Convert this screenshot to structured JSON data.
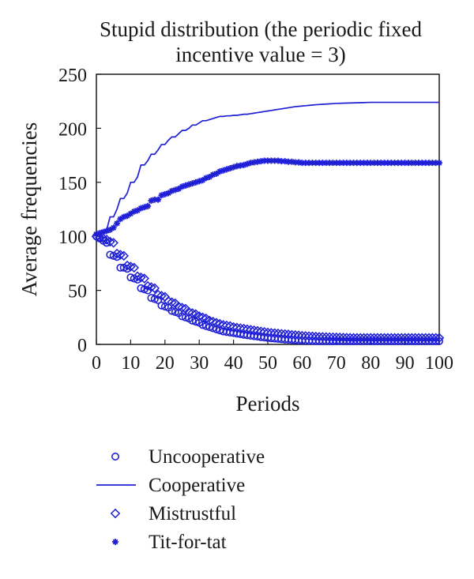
{
  "chart_data": {
    "type": "scatter",
    "title_lines": [
      "Stupid distribution (the periodic fixed",
      "incentive value = 3)"
    ],
    "xlabel": "Periods",
    "ylabel": "Average frequencies",
    "xlim": [
      0,
      100
    ],
    "ylim": [
      0,
      250
    ],
    "xticks": [
      0,
      10,
      20,
      30,
      40,
      50,
      60,
      70,
      80,
      90,
      100
    ],
    "yticks": [
      0,
      50,
      100,
      150,
      200,
      250
    ],
    "grid": false,
    "legend_position": "bottom",
    "line_color": "#1f1fd6",
    "x": [
      0,
      1,
      2,
      3,
      4,
      5,
      6,
      7,
      8,
      9,
      10,
      11,
      12,
      13,
      14,
      15,
      16,
      17,
      18,
      19,
      20,
      21,
      22,
      23,
      24,
      25,
      26,
      27,
      28,
      29,
      30,
      31,
      32,
      33,
      34,
      35,
      36,
      37,
      38,
      39,
      40,
      41,
      42,
      43,
      44,
      45,
      46,
      47,
      48,
      49,
      50,
      51,
      52,
      53,
      54,
      55,
      56,
      57,
      58,
      59,
      60,
      61,
      62,
      63,
      64,
      65,
      66,
      67,
      68,
      69,
      70,
      71,
      72,
      73,
      74,
      75,
      76,
      77,
      78,
      79,
      80,
      81,
      82,
      83,
      84,
      85,
      86,
      87,
      88,
      89,
      90,
      91,
      92,
      93,
      94,
      95,
      96,
      97,
      98,
      99,
      100
    ],
    "series": [
      {
        "name": "Uncooperative",
        "marker": "circle",
        "values": [
          100,
          98,
          96,
          94,
          83,
          82,
          81,
          71,
          71,
          70,
          62,
          61,
          60,
          52,
          51,
          50,
          43,
          42,
          41,
          36,
          35,
          34,
          31,
          30,
          29,
          26,
          25,
          24,
          22,
          21,
          20,
          18,
          17,
          16,
          15,
          14,
          13,
          12,
          11.5,
          11,
          10.5,
          10,
          9.5,
          9,
          8.5,
          8,
          7.6,
          7.2,
          6.8,
          6.4,
          6,
          5.7,
          5.4,
          5.1,
          4.8,
          4.5,
          4.3,
          4.1,
          3.9,
          3.7,
          3.5,
          3.4,
          3.3,
          3.2,
          3.1,
          3,
          3,
          3,
          3,
          3,
          3,
          3,
          3,
          3,
          3,
          3,
          3,
          3,
          3,
          3,
          3,
          3,
          3,
          3,
          3,
          3,
          3,
          3,
          3,
          3,
          3,
          3,
          3,
          3,
          3,
          3,
          3,
          3,
          3,
          3,
          3
        ]
      },
      {
        "name": "Cooperative",
        "marker": "line",
        "values": [
          100,
          102,
          104,
          106,
          118,
          118,
          125,
          135,
          135,
          140,
          150,
          150,
          155,
          166,
          166,
          170,
          176,
          176,
          180,
          185,
          185,
          189,
          192,
          192,
          195,
          198,
          198,
          200,
          203,
          203,
          205,
          207,
          207,
          208,
          209,
          210,
          211,
          211,
          211.5,
          211.5,
          212,
          212,
          212.5,
          213,
          213,
          213.5,
          214,
          214.5,
          215,
          215.5,
          216,
          216.5,
          217,
          217.5,
          218,
          218.5,
          219,
          219.5,
          220,
          220.3,
          220.6,
          220.9,
          221.2,
          221.5,
          221.8,
          222,
          222.2,
          222.4,
          222.6,
          222.8,
          223,
          223.1,
          223.2,
          223.3,
          223.4,
          223.5,
          223.6,
          223.7,
          223.8,
          223.9,
          224,
          224,
          224,
          224,
          224,
          224,
          224,
          224,
          224,
          224,
          224,
          224,
          224,
          224,
          224,
          224,
          224,
          224,
          224,
          224,
          224
        ]
      },
      {
        "name": "Mistrustful",
        "marker": "diamond",
        "values": [
          100,
          99,
          98,
          97,
          95,
          94,
          84,
          83,
          82,
          73,
          72,
          71,
          63,
          62,
          61,
          54,
          53,
          52,
          46,
          45,
          44,
          40,
          39,
          38,
          35,
          34,
          33,
          30,
          29,
          28,
          26,
          25,
          24,
          22,
          21,
          20,
          19,
          18,
          17.5,
          17,
          16,
          15.5,
          15,
          14.5,
          14,
          13.5,
          13,
          12.5,
          12,
          11.5,
          11,
          10.7,
          10.4,
          10.1,
          9.8,
          9.5,
          9.2,
          8.9,
          8.6,
          8.3,
          8,
          7.8,
          7.6,
          7.4,
          7.2,
          7,
          6.9,
          6.8,
          6.7,
          6.6,
          6.5,
          6.4,
          6.3,
          6.2,
          6.1,
          6,
          6,
          6,
          6,
          6,
          6,
          6,
          6,
          6,
          6,
          6,
          6,
          6,
          6,
          6,
          6,
          6,
          6,
          6,
          6,
          6,
          6,
          6,
          6,
          6,
          6
        ]
      },
      {
        "name": "Tit-for-tat",
        "marker": "star",
        "values": [
          102,
          103,
          104,
          105,
          106,
          108,
          112,
          116,
          118,
          119,
          121,
          123,
          124,
          126,
          127,
          128,
          133,
          134,
          134,
          138,
          139,
          140,
          142,
          143,
          144,
          146,
          147,
          148,
          149,
          150,
          151,
          152,
          154,
          155,
          157,
          158,
          160,
          161,
          162,
          163,
          164,
          165,
          165.5,
          166,
          167,
          168,
          168.5,
          169,
          169.5,
          170,
          170,
          170,
          170,
          170,
          169.5,
          169.5,
          169,
          169,
          168.5,
          168.5,
          168,
          168,
          168,
          168,
          168,
          168,
          168,
          168,
          168,
          168,
          168,
          168,
          168,
          168,
          168,
          168,
          168,
          168,
          168,
          168,
          168,
          168,
          168,
          168,
          168,
          168,
          168,
          168,
          168,
          168,
          168,
          168,
          168,
          168,
          168,
          168,
          168,
          168,
          168,
          168,
          168
        ]
      }
    ]
  }
}
